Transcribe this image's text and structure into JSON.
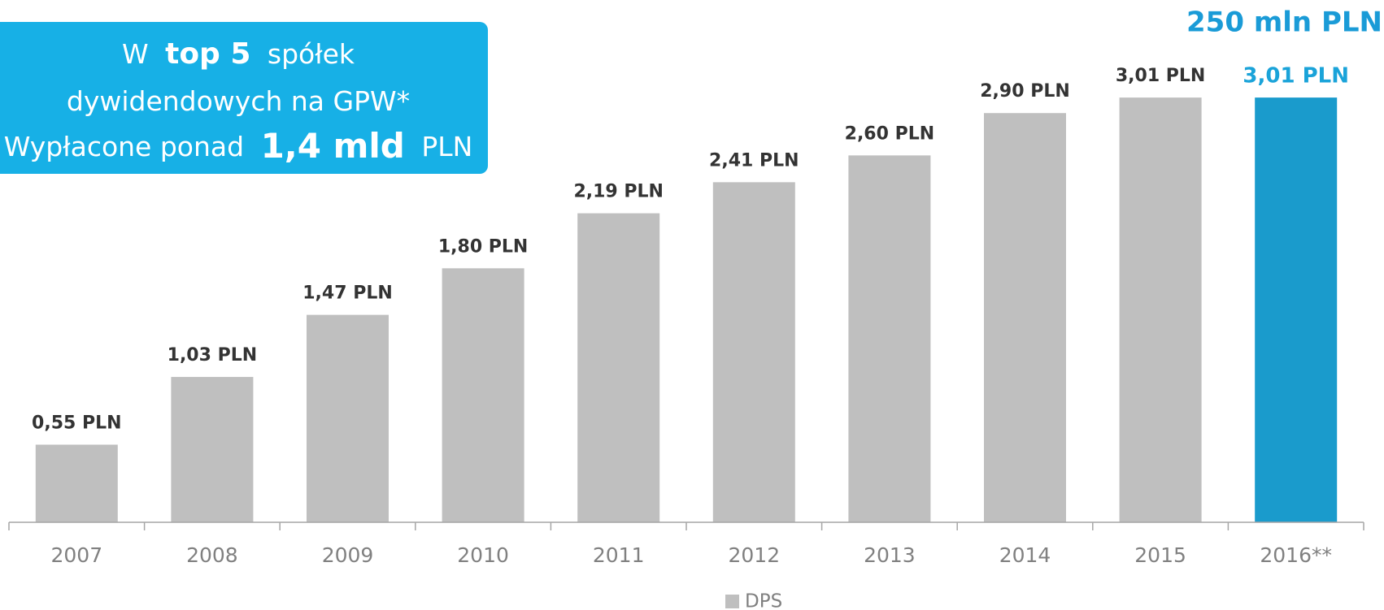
{
  "chart_data": {
    "type": "bar",
    "categories": [
      "2007",
      "2008",
      "2009",
      "2010",
      "2011",
      "2012",
      "2013",
      "2014",
      "2015",
      "2016**"
    ],
    "series": [
      {
        "name": "DPS",
        "color": "#bfbfbf",
        "values": [
          0.55,
          1.03,
          1.47,
          1.8,
          2.19,
          2.41,
          2.6,
          2.9,
          3.01,
          3.01
        ],
        "value_labels": [
          "0,55 PLN",
          "1,03 PLN",
          "1,47 PLN",
          "1,80 PLN",
          "2,19 PLN",
          "2,41 PLN",
          "2,60 PLN",
          "2,90 PLN",
          "3,01 PLN",
          "3,01 PLN"
        ],
        "colors": [
          "#bfbfbf",
          "#bfbfbf",
          "#bfbfbf",
          "#bfbfbf",
          "#bfbfbf",
          "#bfbfbf",
          "#bfbfbf",
          "#bfbfbf",
          "#bfbfbf",
          "#1a9bcc"
        ],
        "label_colors": [
          "#333333",
          "#333333",
          "#333333",
          "#333333",
          "#333333",
          "#333333",
          "#333333",
          "#333333",
          "#333333",
          "#1aa3d9"
        ]
      }
    ],
    "ylim": [
      0,
      3.5
    ],
    "annotations": {
      "box": [
        [
          "W",
          "top 5",
          "spółek"
        ],
        [
          "dywidendowych na GPW*"
        ],
        [
          "Wypłacone ponad",
          "1,4 mld",
          "PLN"
        ]
      ],
      "total": "250 mln PLN"
    }
  }
}
